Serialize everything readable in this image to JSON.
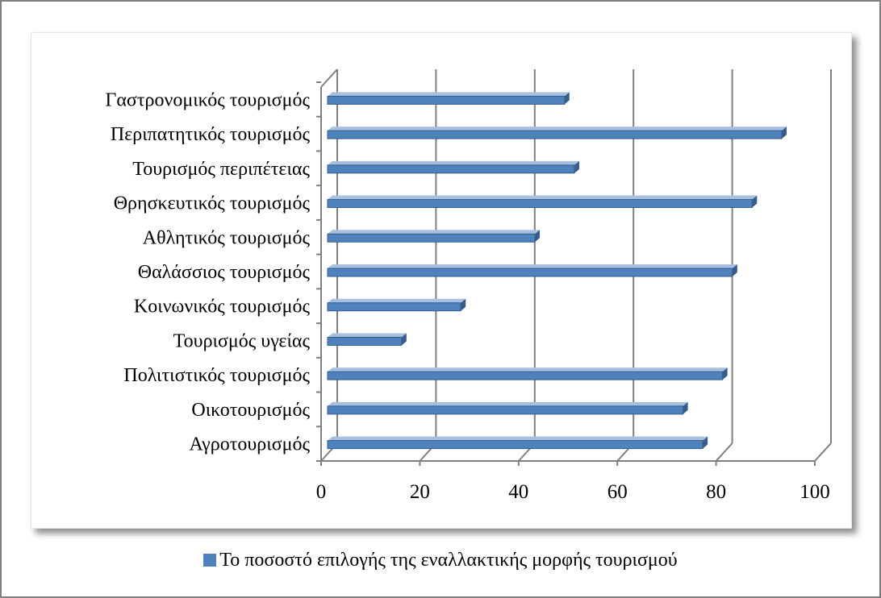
{
  "chart_data": {
    "type": "bar",
    "orientation": "horizontal",
    "categories": [
      "Αγροτουρισμός",
      "Οικοτουρισμός",
      "Πολιτιστικός τουρισμός",
      "Τουρισμός υγείας",
      "Κοινωνικός τουρισμός",
      "Θαλάσσιος τουρισμός",
      "Αθλητικός τουρισμός",
      "Θρησκευτικός τουρισμός",
      "Τουρισμός περιπέτειας",
      "Περιπατητικός τουρισμός",
      "Γαστρονομικός τουρισμός"
    ],
    "series": [
      {
        "name": "Το ποσοστό επιλογής της εναλλακτικής μορφής τουρισμού",
        "values": [
          76,
          72,
          80,
          15,
          27,
          82,
          42,
          86,
          50,
          92,
          48
        ]
      }
    ],
    "xlim": [
      0,
      100
    ],
    "xticks": [
      "0",
      "20",
      "40",
      "60",
      "80",
      "100"
    ],
    "grid": true,
    "legend_position": "bottom",
    "colors": {
      "bar": "#4f81bd",
      "bar_dark": "#385d8a",
      "bar_light": "#a7c0e0",
      "grid": "#7f7f7f"
    }
  }
}
